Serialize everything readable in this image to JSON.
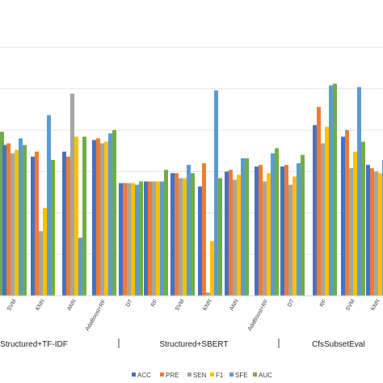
{
  "chart_data": {
    "type": "bar",
    "title": "",
    "xlabel": "",
    "ylabel": "",
    "ylim": [
      0,
      1.5
    ],
    "grid": true,
    "legend_position": "bottom",
    "groups": [
      {
        "label": "Structured+TF-IDF",
        "categories": [
          "SVM",
          "KNN",
          "ANN",
          "AdaBoost+RF"
        ]
      },
      {
        "label": "Structured+SBERT",
        "categories": [
          "DT",
          "RF",
          "SVM",
          "KNN",
          "ANN",
          "AdaBoost+RF"
        ]
      },
      {
        "label": "CfsSubsetEval",
        "categories": [
          "DT",
          "RF",
          "SVM",
          "KNN"
        ]
      }
    ],
    "categories": [
      "SVM",
      "KNN",
      "ANN",
      "AdaBoost+RF",
      "DT",
      "RF",
      "SVM",
      "KNN",
      "ANN",
      "AdaBoost+RF",
      "DT",
      "RF",
      "SVM",
      "KNN"
    ],
    "series": [
      {
        "name": "ACC",
        "color": "#4472C4",
        "values": [
          0.91,
          0.84,
          0.87,
          0.94,
          0.68,
          0.69,
          0.74,
          0.66,
          0.75,
          0.78,
          0.78,
          1.03,
          0.96,
          0.79
        ]
      },
      {
        "name": "PRE",
        "color": "#ED7D31",
        "values": [
          0.92,
          0.87,
          0.84,
          0.95,
          0.68,
          0.69,
          0.74,
          0.8,
          0.76,
          0.79,
          0.79,
          1.14,
          1.0,
          0.77
        ]
      },
      {
        "name": "SEN",
        "color": "#A5A5A5",
        "values": [
          0.86,
          0.39,
          1.22,
          0.92,
          0.68,
          0.69,
          0.71,
          0.02,
          0.7,
          0.69,
          0.67,
          0.92,
          0.77,
          0.75
        ]
      },
      {
        "name": "F1",
        "color": "#FFC000",
        "values": [
          0.88,
          0.53,
          0.96,
          0.93,
          0.68,
          0.69,
          0.71,
          0.33,
          0.73,
          0.74,
          0.72,
          1.02,
          0.87,
          0.74
        ]
      },
      {
        "name": "SFE",
        "color": "#5B9BD5",
        "values": [
          0.95,
          1.09,
          0.35,
          0.98,
          0.67,
          0.69,
          0.79,
          1.24,
          0.83,
          0.86,
          0.8,
          1.27,
          1.26,
          0.82
        ]
      },
      {
        "name": "AUC",
        "color": "#70AD47",
        "values": [
          0.91,
          0.82,
          0.96,
          1.0,
          0.69,
          0.76,
          0.74,
          0.71,
          0.83,
          0.89,
          0.85,
          1.28,
          0.93,
          0.85
        ]
      }
    ],
    "partial_visible": {
      "name": "AUC",
      "value": 0.99
    }
  }
}
